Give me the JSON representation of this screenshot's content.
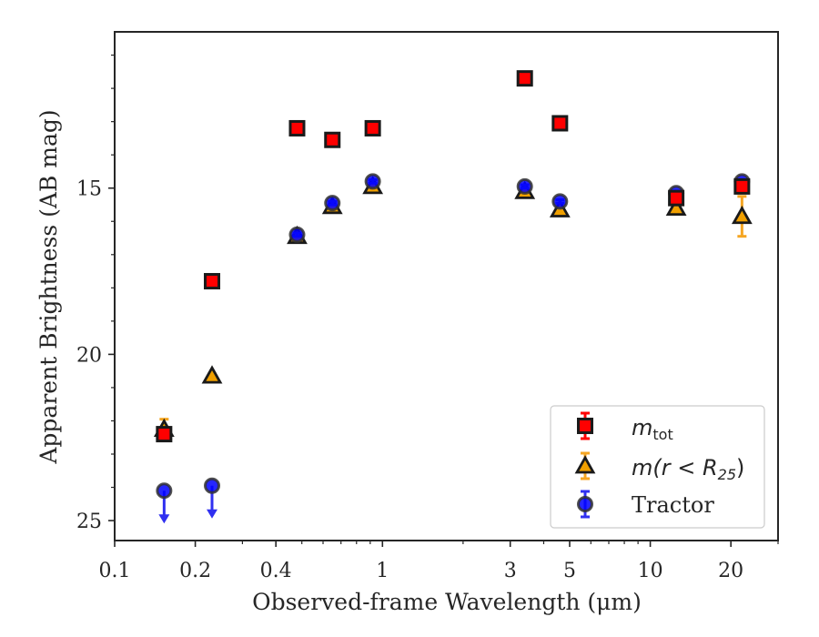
{
  "chart_data": {
    "type": "scatter",
    "xlabel": "Observed-frame Wavelength (μm)",
    "ylabel": "Apparent Brightness (AB mag)",
    "xscale": "log",
    "xlim": [
      0.1,
      30
    ],
    "ylim": [
      25.6,
      10.3
    ],
    "y_inverted": true,
    "x_tick_labels": [
      "0.1",
      "0.2",
      "0.4",
      "1",
      "3",
      "5",
      "10",
      "20"
    ],
    "x_tick_values": [
      0.1,
      0.2,
      0.4,
      1,
      3,
      5,
      10,
      20
    ],
    "y_tick_labels": [
      "15",
      "20",
      "25"
    ],
    "y_tick_values": [
      15,
      20,
      25
    ],
    "grid": false,
    "legend_position": "bottom-right",
    "series": [
      {
        "name": "m_tot",
        "label_main": "m",
        "label_sub": "tot",
        "marker": "square",
        "color": "#ff0000",
        "edge": "#1a1a1a",
        "errcolor": "#ff0000",
        "x": [
          0.153,
          0.231,
          0.48,
          0.65,
          0.92,
          3.4,
          4.6,
          12.5,
          22.0
        ],
        "y": [
          22.4,
          17.8,
          13.2,
          13.55,
          13.2,
          11.7,
          13.05,
          15.3,
          14.95
        ],
        "err": [
          0.15,
          0.05,
          0.03,
          0.03,
          0.03,
          0.03,
          0.03,
          0.05,
          0.1
        ]
      },
      {
        "name": "m(r < R25)",
        "label_main": "m(r < R",
        "label_sub": "25",
        "label_close": ")",
        "marker": "triangle",
        "color": "#f0a000",
        "edge": "#1a1a1a",
        "errcolor": "#f5a623",
        "x": [
          0.153,
          0.231,
          0.48,
          0.65,
          0.92,
          3.4,
          4.6,
          12.5,
          22.0
        ],
        "y": [
          22.25,
          20.65,
          16.45,
          15.55,
          14.95,
          15.1,
          15.65,
          15.6,
          15.85
        ],
        "err": [
          0.3,
          0.05,
          0.05,
          0.05,
          0.05,
          0.05,
          0.05,
          0.1,
          0.6
        ]
      },
      {
        "name": "Tractor",
        "marker": "circle",
        "color": "#0000ff",
        "edge": "#333333",
        "errcolor": "#3030f0",
        "x": [
          0.153,
          0.231,
          0.48,
          0.65,
          0.92,
          3.4,
          4.6,
          12.5,
          22.0
        ],
        "y": [
          24.1,
          23.95,
          16.4,
          15.45,
          14.8,
          14.95,
          15.4,
          15.15,
          14.8
        ],
        "err": [
          0,
          0,
          0.05,
          0.05,
          0.05,
          0.05,
          0.05,
          0.05,
          0.05
        ],
        "upper_limit": [
          true,
          true,
          false,
          false,
          false,
          false,
          false,
          false,
          false
        ]
      }
    ]
  }
}
